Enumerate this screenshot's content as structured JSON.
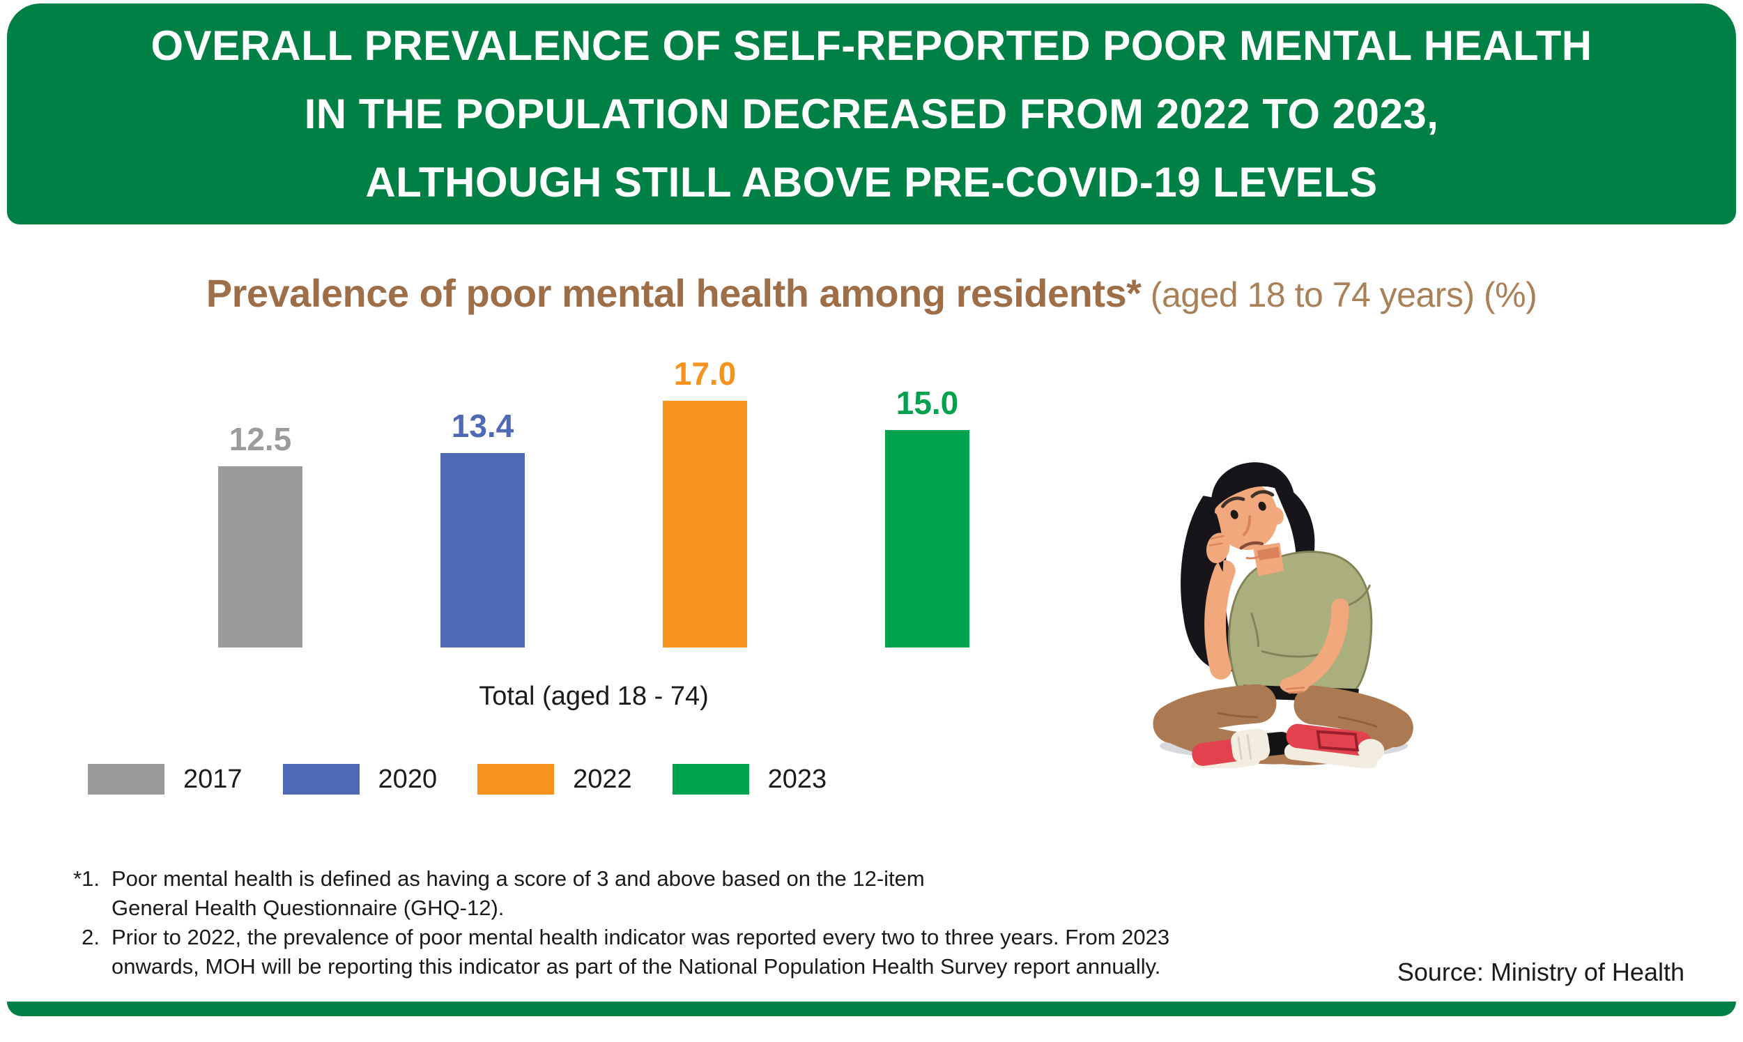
{
  "header": {
    "bg_color": "#008044",
    "text_color": "#FFFFFF",
    "lines": [
      "OVERALL PREVALENCE OF SELF-REPORTED POOR MENTAL HEALTH",
      "IN THE POPULATION DECREASED FROM 2022 TO 2023,",
      "ALTHOUGH STILL ABOVE PRE-COVID-19 LEVELS"
    ]
  },
  "chart": {
    "title_bold": "Prevalence of poor mental health among residents*",
    "title_light": " (aged 18 to 74 years) (%)",
    "title_bold_color": "#9E6E49",
    "title_light_color": "#AA8058",
    "axis_label": "Total (aged 18 - 74)"
  },
  "chart_data": {
    "type": "bar",
    "title": "Prevalence of poor mental health among residents* (aged 18 to 74 years) (%)",
    "categories": [
      "2017",
      "2020",
      "2022",
      "2023"
    ],
    "values": [
      12.5,
      13.4,
      17.0,
      15.0
    ],
    "value_labels": [
      "12.5",
      "13.4",
      "17.0",
      "15.0"
    ],
    "colors": [
      "#9B9B9E",
      "#5069B4",
      "#F7921E",
      "#00A14F"
    ],
    "x_group_label": "Total (aged 18 - 74)",
    "ylim": [
      0,
      18
    ],
    "grid": false,
    "legend_position": "bottom"
  },
  "legend": {
    "items": [
      {
        "label": "2017",
        "color": "#9B9B9E"
      },
      {
        "label": "2020",
        "color": "#5069B4"
      },
      {
        "label": "2022",
        "color": "#F7921E"
      },
      {
        "label": "2023",
        "color": "#00A14F"
      }
    ]
  },
  "footnotes": {
    "lines": [
      {
        "marker": "*1.",
        "text": "Poor mental health is defined as having a score of 3 and above based on the 12-item"
      },
      {
        "marker": "",
        "text": "General Health Questionnaire (GHQ-12)."
      },
      {
        "marker": "2.",
        "text": "Prior to 2022, the prevalence of poor mental health indicator was reported every two to three years. From 2023"
      },
      {
        "marker": "",
        "text": "onwards, MOH will be reporting this indicator as part of the National Population Health Survey report annually."
      }
    ]
  },
  "source": "Source: Ministry of Health",
  "illustration": {
    "alt": "Sad woman sitting cross-legged resting her head on her hand"
  }
}
